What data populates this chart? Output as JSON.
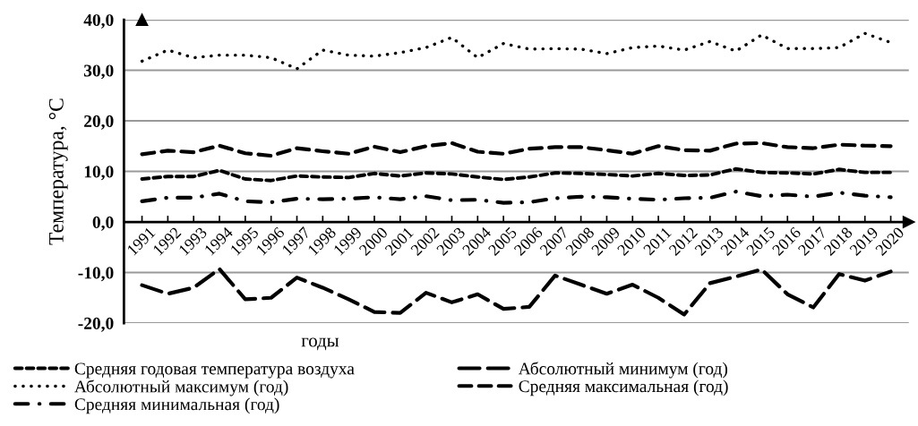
{
  "chart_data": {
    "type": "line",
    "xlabel": "годы",
    "ylabel": "Температура, °C",
    "categories": [
      "1991",
      "1992",
      "1993",
      "1994",
      "1995",
      "1996",
      "1997",
      "1998",
      "1999",
      "2000",
      "2001",
      "2002",
      "2003",
      "2004",
      "2005",
      "2006",
      "2007",
      "2008",
      "2009",
      "2010",
      "2011",
      "2012",
      "2013",
      "2014",
      "2015",
      "2016",
      "2017",
      "2018",
      "2019",
      "2020"
    ],
    "series": [
      {
        "name": "Средняя годовая температура воздуха",
        "color": "#000000",
        "line_style": "dashed",
        "values": [
          8.5,
          9.0,
          9.0,
          10.2,
          8.5,
          8.2,
          9.1,
          8.9,
          8.8,
          9.6,
          9.1,
          9.7,
          9.5,
          8.9,
          8.4,
          8.9,
          9.7,
          9.6,
          9.4,
          9.1,
          9.6,
          9.2,
          9.3,
          10.5,
          9.8,
          9.7,
          9.5,
          10.4,
          9.8,
          9.8
        ]
      },
      {
        "name": "Абсолютный минимум (год)",
        "color": "#000000",
        "line_style": "long_dashed",
        "values": [
          -12.5,
          -14.2,
          -13.0,
          -9.3,
          -15.3,
          -15.0,
          -11.0,
          -13.0,
          -15.3,
          -17.8,
          -18.0,
          -14.0,
          -15.9,
          -14.3,
          -17.2,
          -16.8,
          -10.6,
          -12.4,
          -14.2,
          -12.4,
          -15.0,
          -18.3,
          -12.1,
          -10.8,
          -9.4,
          -14.3,
          -16.9,
          -10.3,
          -11.6,
          -9.8
        ]
      },
      {
        "name": "Абсолютный максимум (год)",
        "color": "#000000",
        "line_style": "dotted",
        "values": [
          31.8,
          34.0,
          32.5,
          33.0,
          33.0,
          32.5,
          30.3,
          34.0,
          33.0,
          32.8,
          33.5,
          34.5,
          36.5,
          32.5,
          35.3,
          34.2,
          34.3,
          34.2,
          33.3,
          34.5,
          34.8,
          34.0,
          35.7,
          33.8,
          37.0,
          34.3,
          34.3,
          34.5,
          37.3,
          35.5
        ]
      },
      {
        "name": "Средняя максимальная (год)",
        "color": "#000000",
        "line_style": "dashed_wide",
        "values": [
          13.4,
          14.1,
          13.8,
          15.1,
          13.6,
          13.1,
          14.6,
          14.0,
          13.5,
          14.9,
          13.8,
          15.0,
          15.6,
          13.9,
          13.5,
          14.5,
          14.8,
          14.8,
          14.2,
          13.5,
          15.0,
          14.2,
          14.1,
          15.5,
          15.6,
          14.8,
          14.6,
          15.3,
          15.1,
          15.0
        ]
      },
      {
        "name": "Средняя минимальная (год)",
        "color": "#000000",
        "line_style": "dashdot",
        "values": [
          4.1,
          4.8,
          4.8,
          5.6,
          4.1,
          3.9,
          4.6,
          4.5,
          4.6,
          4.9,
          4.5,
          5.1,
          4.3,
          4.4,
          3.8,
          3.9,
          4.7,
          5.0,
          4.9,
          4.6,
          4.4,
          4.7,
          4.8,
          6.0,
          5.1,
          5.4,
          5.0,
          5.8,
          5.2,
          4.9
        ]
      }
    ],
    "ylim": [
      -20,
      40
    ],
    "yticks": [
      {
        "value": -20,
        "label": "-20,0"
      },
      {
        "value": -10,
        "label": "-10,0"
      },
      {
        "value": 0,
        "label": "0,0"
      },
      {
        "value": 10,
        "label": "10,0"
      },
      {
        "value": 20,
        "label": "20,0"
      },
      {
        "value": 30,
        "label": "30,0"
      },
      {
        "value": 40,
        "label": "40,0"
      }
    ],
    "grid": "y",
    "legend": "bottom",
    "marker": "none"
  }
}
